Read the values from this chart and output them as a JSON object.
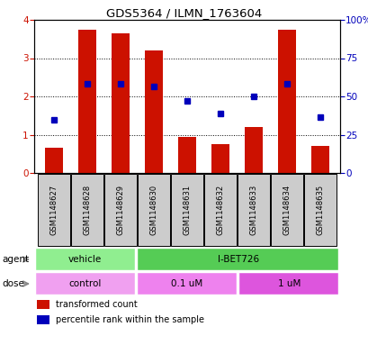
{
  "title": "GDS5364 / ILMN_1763604",
  "samples": [
    "GSM1148627",
    "GSM1148628",
    "GSM1148629",
    "GSM1148630",
    "GSM1148631",
    "GSM1148632",
    "GSM1148633",
    "GSM1148634",
    "GSM1148635"
  ],
  "red_values": [
    0.65,
    3.75,
    3.65,
    3.2,
    0.95,
    0.75,
    1.2,
    3.75,
    0.7
  ],
  "blue_values": [
    1.4,
    2.32,
    2.32,
    2.25,
    1.88,
    1.55,
    2.0,
    2.32,
    1.45
  ],
  "ylim_left": [
    0,
    4
  ],
  "ylim_right": [
    0,
    100
  ],
  "yticks_left": [
    0,
    1,
    2,
    3,
    4
  ],
  "yticks_right": [
    0,
    25,
    50,
    75,
    100
  ],
  "agent_labels": [
    {
      "text": "vehicle",
      "start": 0,
      "end": 3,
      "color": "#90ee90"
    },
    {
      "text": "I-BET726",
      "start": 3,
      "end": 9,
      "color": "#55cc55"
    }
  ],
  "dose_labels": [
    {
      "text": "control",
      "start": 0,
      "end": 3,
      "color": "#f0a0f0"
    },
    {
      "text": "0.1 uM",
      "start": 3,
      "end": 6,
      "color": "#ee82ee"
    },
    {
      "text": "1 uM",
      "start": 6,
      "end": 9,
      "color": "#dd55dd"
    }
  ],
  "bar_color": "#cc1100",
  "dot_color": "#0000bb",
  "background_color": "#ffffff",
  "sample_box_color": "#cccccc",
  "bar_width": 0.55
}
